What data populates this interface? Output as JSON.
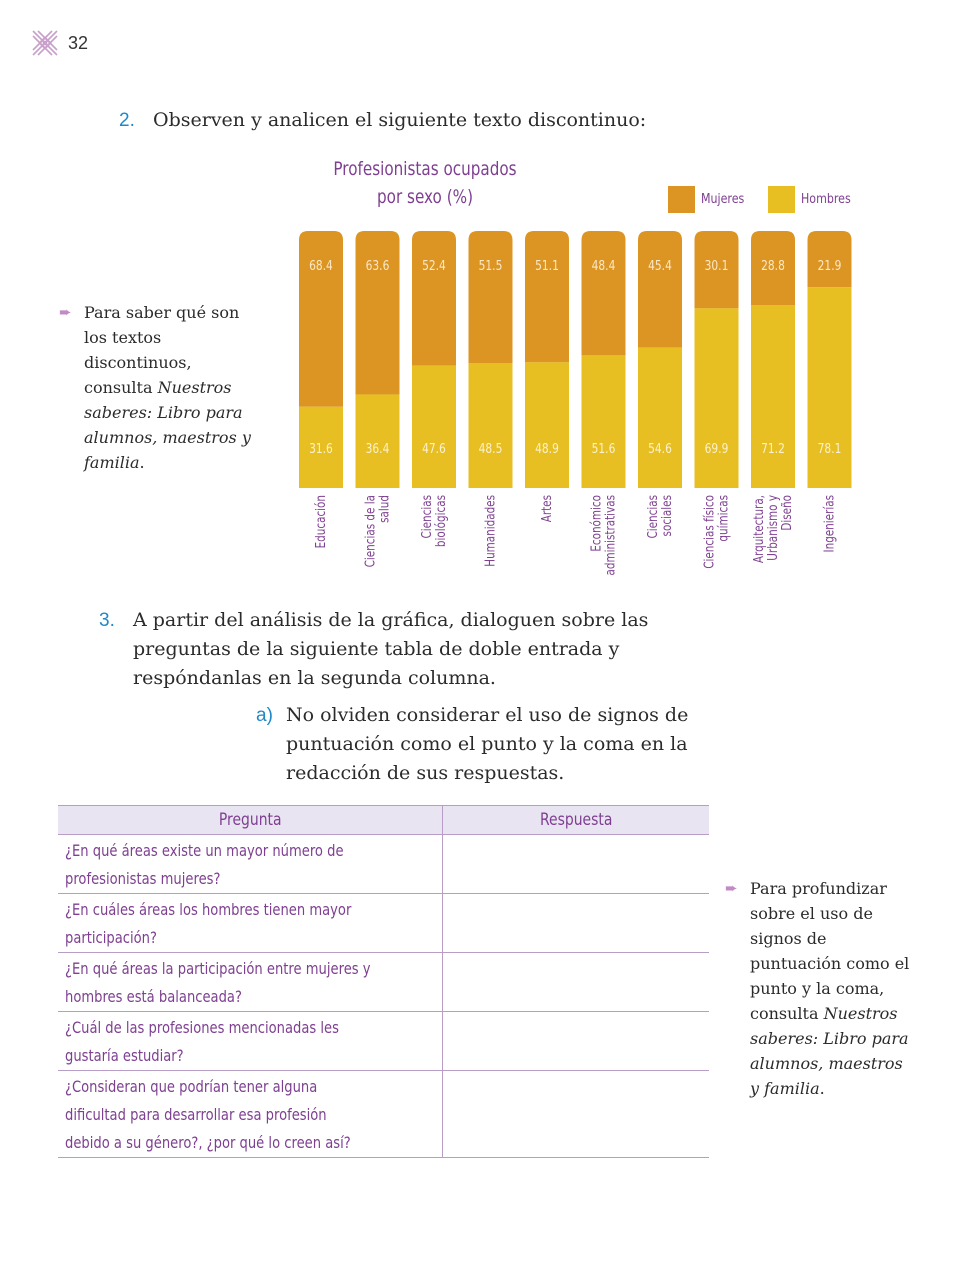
{
  "page": {
    "number": "32",
    "logo_icon": "crossed-pattern-icon"
  },
  "activity2": {
    "number": "2.",
    "text": "Observen y analicen el siguiente texto discontinuo:"
  },
  "chart_data": {
    "type": "bar",
    "stacked": true,
    "title_lines": [
      "Profesionistas ocupados",
      "por sexo (%)"
    ],
    "categories": [
      [
        "Educación"
      ],
      [
        "Ciencias de la",
        "salud"
      ],
      [
        "Ciencias",
        "biológicas"
      ],
      [
        "Humanidades"
      ],
      [
        "Artes"
      ],
      [
        "Económico",
        "administrativas"
      ],
      [
        "Ciencias",
        "sociales"
      ],
      [
        "Ciencias físico",
        "químicas"
      ],
      [
        "Arquitectura,",
        "Urbanismo y",
        "Diseño"
      ],
      [
        "Ingenierías"
      ]
    ],
    "series": [
      {
        "name": "Mujeres",
        "color": "#dc9523",
        "values": [
          68.4,
          63.6,
          52.4,
          51.5,
          51.1,
          48.4,
          45.4,
          30.1,
          28.8,
          21.9
        ]
      },
      {
        "name": "Hombres",
        "color": "#e8bf23",
        "values": [
          31.6,
          36.4,
          47.6,
          48.5,
          48.9,
          51.6,
          54.6,
          69.9,
          71.2,
          78.1
        ]
      }
    ],
    "legend_position": "top-right",
    "ylim": [
      0,
      100
    ]
  },
  "note1": {
    "arrow_icon": "right-arrow-icon",
    "plain": "Para saber qué son los textos discontinuos, consulta ",
    "italic": "Nuestros saberes: Libro para alumnos, maestros y familia",
    "end": "."
  },
  "activity3": {
    "number": "3.",
    "text": "A partir del análisis de la gráfica, dialoguen sobre las preguntas de la siguiente tabla de doble entrada y respóndanlas en la segunda columna.",
    "sub": {
      "letter": "a)",
      "text": "No olviden considerar el uso de signos de puntuación como el punto y la coma en la redacción de sus respuestas."
    }
  },
  "table": {
    "headers": [
      "Pregunta",
      "Respuesta"
    ],
    "rows": [
      [
        "¿En qué áreas existe un mayor número de",
        "profesionistas mujeres?"
      ],
      [
        "¿En cuáles áreas los hombres tienen mayor",
        "participación?"
      ],
      [
        "¿En qué áreas la participación entre mujeres y",
        "hombres está balanceada?"
      ],
      [
        "¿Cuál de las profesiones mencionadas les",
        "gustaría estudiar?"
      ],
      [
        "¿Consideran que podrían tener alguna",
        "dificultad para desarrollar esa profesión",
        "debido a su género?, ¿por qué lo creen así?"
      ]
    ]
  },
  "note2": {
    "arrow_icon": "right-arrow-icon",
    "plain": "Para profundizar sobre el uso de signos de puntuación como el punto y la coma, consulta ",
    "italic": "Nuestros saberes: Libro para alumnos, maestros y familia",
    "end": "."
  }
}
